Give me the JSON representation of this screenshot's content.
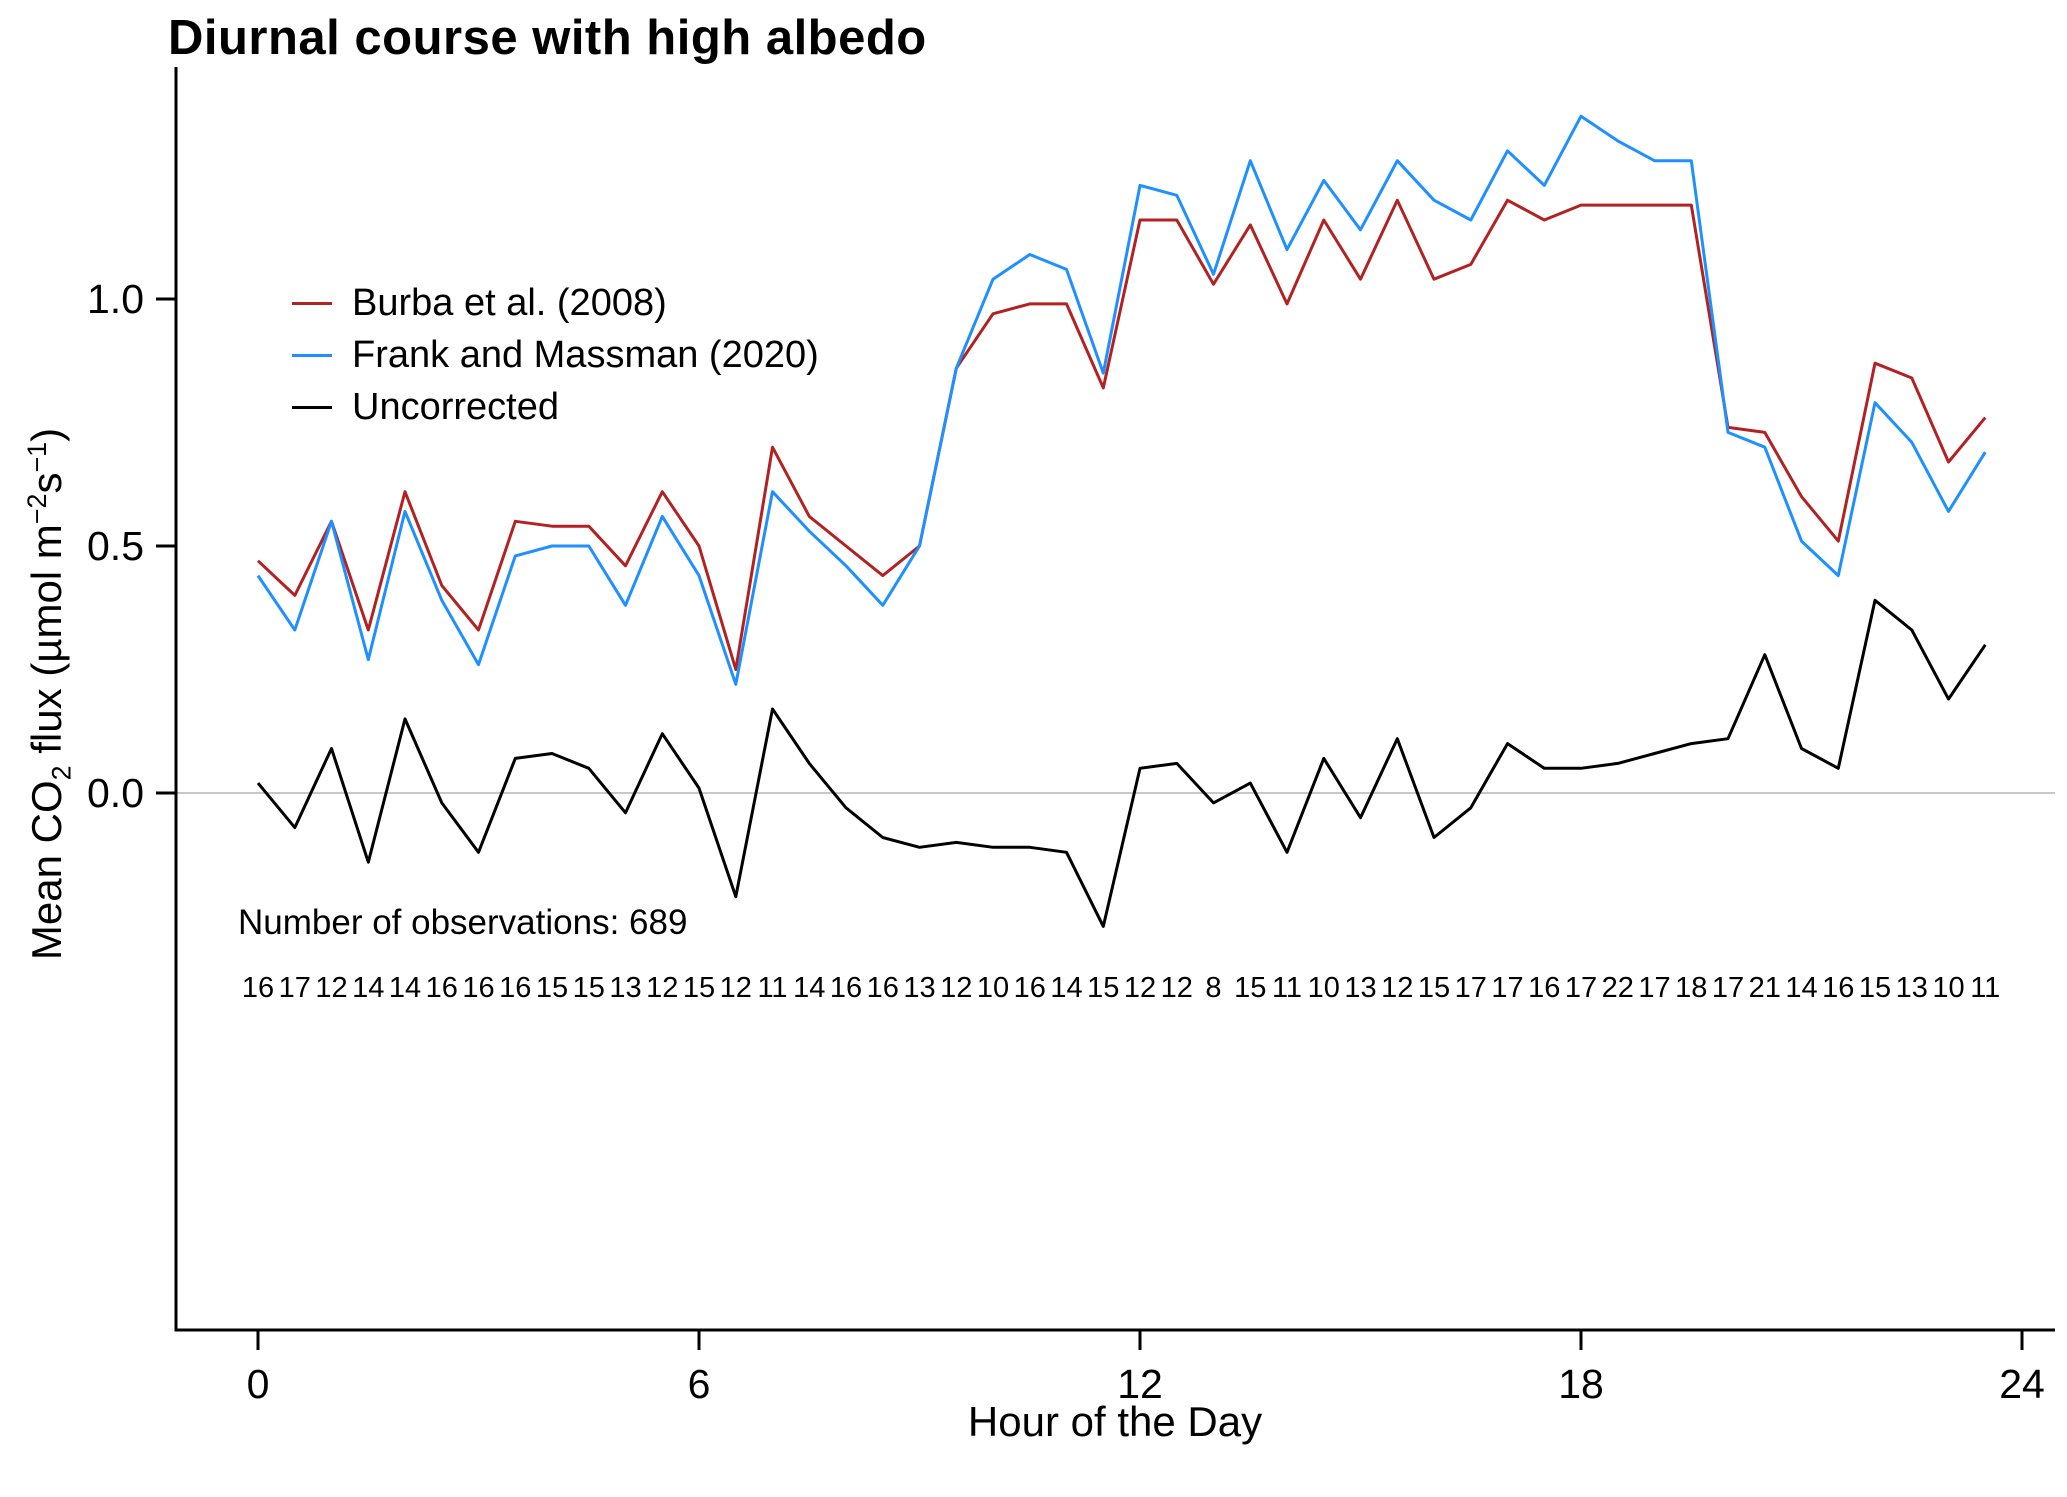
{
  "title": "Diurnal course with high albedo",
  "colors": {
    "burba_red": "#B22222",
    "frank_blue": "#1E90FF",
    "uncorrected_black": "#000000",
    "zero_line_gray": "#C8C8C8",
    "axis_black": "#000000",
    "background": "#FFFFFF"
  },
  "annotations": {
    "observations": "Number of observations: 689"
  },
  "x_axis": {
    "title": "Hour of the Day",
    "ticks": [
      0,
      6,
      12,
      18,
      24
    ],
    "tick_labels": [
      "0",
      "6",
      "12",
      "18",
      "24"
    ]
  },
  "y_axis": {
    "ticks": [
      0,
      0.5,
      1
    ],
    "tick_labels": [
      "0.0",
      "0.5",
      "1.0"
    ],
    "label_plain": "Mean CO2 flux (µmol m−2 s−1)",
    "label_parts": {
      "p1": "Mean CO",
      "sub1": "2",
      "p2": " flux (",
      "p3": "µmol m",
      "sup1": "−2",
      "p4": "s",
      "sup2": "−1",
      "p5": ")"
    }
  },
  "chart_data": {
    "type": "line",
    "title": "Diurnal course with high albedo",
    "xlabel": "Hour of the Day",
    "ylabel": "Mean CO2 flux (umol m^-2 s^-1)",
    "xlim": [
      0,
      24
    ],
    "ylim_visible": [
      -1.05,
      1.47
    ],
    "grid": false,
    "zero_line": true,
    "legend_position": "top-left-inside",
    "x": [
      0,
      0.5,
      1,
      1.5,
      2,
      2.5,
      3,
      3.5,
      4,
      4.5,
      5,
      5.5,
      6,
      6.5,
      7,
      7.5,
      8,
      8.5,
      9,
      9.5,
      10,
      10.5,
      11,
      11.5,
      12,
      12.5,
      13,
      13.5,
      14,
      14.5,
      15,
      15.5,
      16,
      16.5,
      17,
      17.5,
      18,
      18.5,
      19,
      19.5,
      20,
      20.5,
      21,
      21.5,
      22,
      22.5,
      23,
      23.5
    ],
    "series": [
      {
        "key": "burba",
        "name": "Burba et al. (2008)",
        "color": "#B22222",
        "values": [
          0.47,
          0.4,
          0.55,
          0.33,
          0.61,
          0.42,
          0.33,
          0.55,
          0.54,
          0.54,
          0.46,
          0.61,
          0.5,
          0.25,
          0.7,
          0.56,
          0.5,
          0.44,
          0.5,
          0.86,
          0.97,
          0.99,
          0.99,
          0.82,
          1.16,
          1.16,
          1.03,
          1.15,
          0.99,
          1.16,
          1.04,
          1.2,
          1.04,
          1.07,
          1.2,
          1.16,
          1.19,
          1.19,
          1.19,
          1.19,
          0.74,
          0.73,
          0.6,
          0.51,
          0.87,
          0.84,
          0.67,
          0.76
        ]
      },
      {
        "key": "frank",
        "name": "Frank and Massman (2020)",
        "color": "#1E90FF",
        "values": [
          0.44,
          0.33,
          0.55,
          0.27,
          0.57,
          0.39,
          0.26,
          0.48,
          0.5,
          0.5,
          0.38,
          0.56,
          0.44,
          0.22,
          0.61,
          0.53,
          0.46,
          0.38,
          0.5,
          0.86,
          1.04,
          1.09,
          1.06,
          0.85,
          1.23,
          1.21,
          1.05,
          1.28,
          1.1,
          1.24,
          1.14,
          1.28,
          1.2,
          1.16,
          1.3,
          1.23,
          1.37,
          1.32,
          1.28,
          1.28,
          0.73,
          0.7,
          0.51,
          0.44,
          0.79,
          0.71,
          0.57,
          0.69
        ]
      },
      {
        "key": "uncorrected",
        "name": "Uncorrected",
        "color": "#000000",
        "values": [
          0.02,
          -0.07,
          0.09,
          -0.14,
          0.15,
          -0.02,
          -0.12,
          0.07,
          0.08,
          0.05,
          -0.04,
          0.12,
          0.01,
          -0.21,
          0.17,
          0.06,
          -0.03,
          -0.09,
          -0.11,
          -0.1,
          -0.11,
          -0.11,
          -0.12,
          -0.27,
          0.05,
          0.06,
          -0.02,
          0.02,
          -0.12,
          0.07,
          -0.05,
          0.11,
          -0.09,
          -0.03,
          0.1,
          0.05,
          0.05,
          0.06,
          0.08,
          0.1,
          0.11,
          0.28,
          0.09,
          0.05,
          0.39,
          0.33,
          0.19,
          0.3
        ]
      }
    ],
    "counts_per_bin": [
      16,
      17,
      12,
      14,
      14,
      16,
      16,
      16,
      15,
      15,
      13,
      12,
      15,
      12,
      11,
      14,
      16,
      16,
      13,
      12,
      10,
      16,
      14,
      15,
      12,
      12,
      8,
      15,
      11,
      10,
      13,
      12,
      15,
      17,
      17,
      16,
      17,
      22,
      17,
      18,
      17,
      21,
      14,
      16,
      15,
      13,
      10,
      11
    ]
  }
}
